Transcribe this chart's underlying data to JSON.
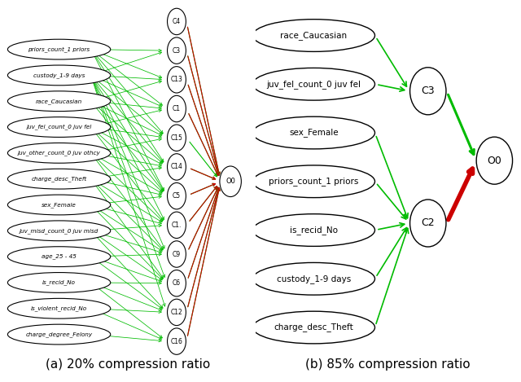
{
  "panel_a": {
    "title": "(a) 20% compression ratio",
    "input_nodes": [
      "priors_count_1 priors",
      "custody_1-9 days",
      "race_Caucasian",
      "juv_fel_count_0 juv fel",
      "juv_other_count_0 juv othcy",
      "charge_desc_Theft",
      "sex_Female",
      "juv_misd_count_0 juv misd",
      "age_25 - 45",
      "is_recid_No",
      "is_violent_recid_No",
      "charge_degree_Felony"
    ],
    "cluster_nodes": [
      "C4",
      "C3",
      "C13",
      "C1",
      "C15",
      "C14",
      "C5",
      "C1.",
      "C9",
      "C6",
      "C12",
      "C16"
    ],
    "output_node": "O0",
    "input_cluster_connections": {
      "0": [
        1,
        2,
        3,
        4,
        5,
        6
      ],
      "1": [
        1,
        2,
        3,
        4,
        5,
        6,
        7,
        8,
        9,
        10
      ],
      "2": [
        2,
        3,
        4,
        5,
        6
      ],
      "3": [
        3,
        4,
        5,
        6,
        7
      ],
      "4": [
        4,
        5,
        6,
        7,
        8
      ],
      "5": [
        5,
        6,
        7,
        8,
        9
      ],
      "6": [
        6,
        7,
        8,
        9
      ],
      "7": [
        7,
        8,
        9,
        10
      ],
      "8": [
        8,
        9,
        10
      ],
      "9": [
        9,
        10,
        11
      ],
      "10": [
        10,
        11
      ],
      "11": [
        11
      ]
    },
    "red_cluster_indices": [
      0,
      1,
      2,
      3,
      5,
      6,
      7,
      8,
      9,
      10,
      11
    ],
    "green_cluster_indices": [
      0,
      1,
      2,
      3,
      4,
      5,
      6,
      7,
      8,
      9,
      10,
      11
    ]
  },
  "panel_b": {
    "title": "(b) 85% compression ratio",
    "input_nodes": [
      "race_Caucasian",
      "juv_fel_count_0 juv fel",
      "sex_Female",
      "priors_count_1 priors",
      "is_recid_No",
      "custody_1-9 days",
      "charge_desc_Theft"
    ],
    "c3_inputs": [
      0,
      1
    ],
    "c2_inputs": [
      2,
      3,
      4,
      5,
      6
    ],
    "output_node": "O0"
  },
  "background_color": "#ffffff",
  "green_color": "#00bb00",
  "red_color": "#cc0000",
  "caption_font_size": 11
}
